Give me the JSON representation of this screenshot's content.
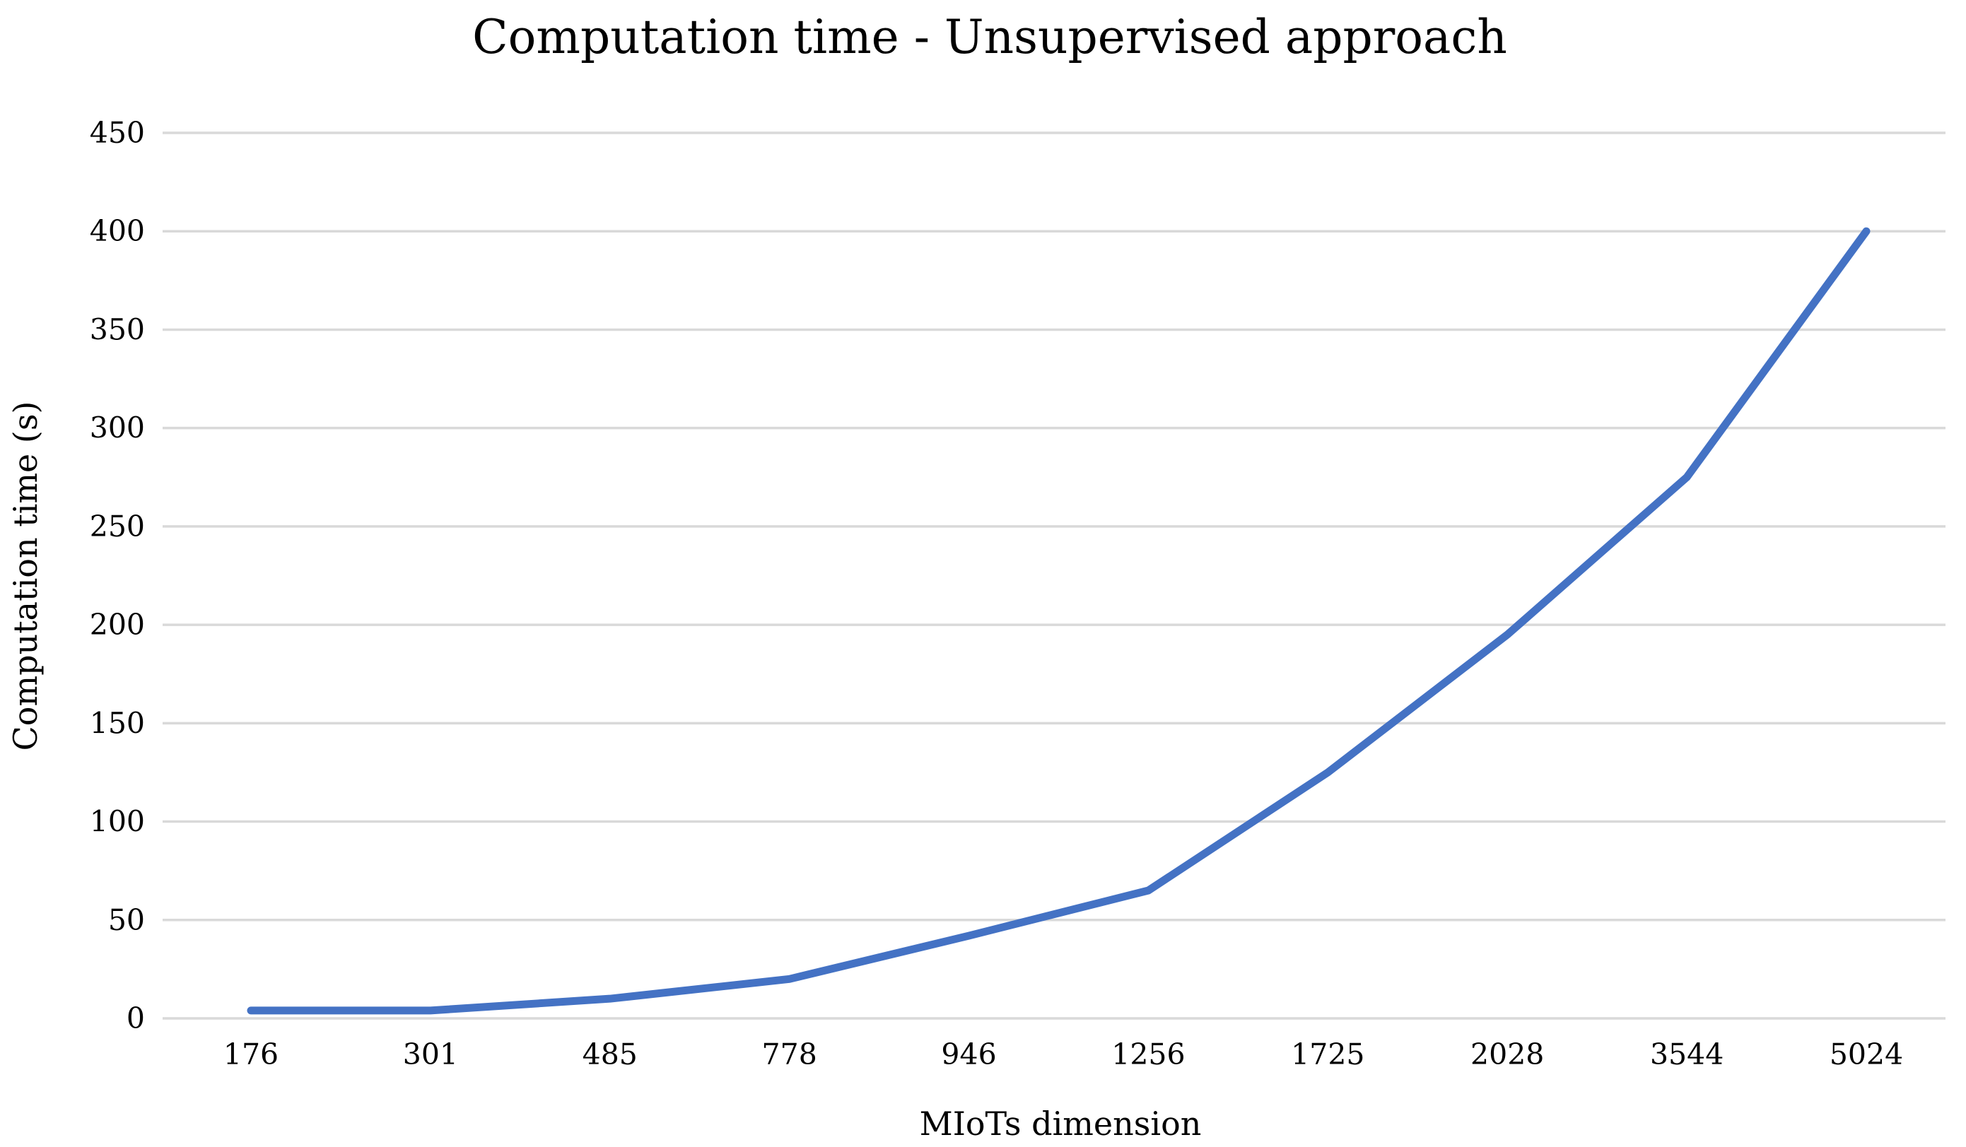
{
  "chart_data": {
    "type": "line",
    "title": "Computation time - Unsupervised approach",
    "xlabel": "MIoTs dimension",
    "ylabel": "Computation time (s)",
    "categories": [
      "176",
      "301",
      "485",
      "778",
      "946",
      "1256",
      "1725",
      "2028",
      "3544",
      "5024"
    ],
    "series": [
      {
        "name": "Computation time",
        "values": [
          4,
          4,
          10,
          20,
          42,
          65,
          125,
          195,
          275,
          400
        ]
      }
    ],
    "ylim": [
      0,
      450
    ],
    "yticks": [
      0,
      50,
      100,
      150,
      200,
      250,
      300,
      350,
      400,
      450
    ],
    "grid": "horizontal",
    "legend_position": "none",
    "line_color": "#4472C4",
    "gridline_color": "#D9D9D9",
    "text_color": "#000000",
    "background_color": "#FFFFFF"
  }
}
